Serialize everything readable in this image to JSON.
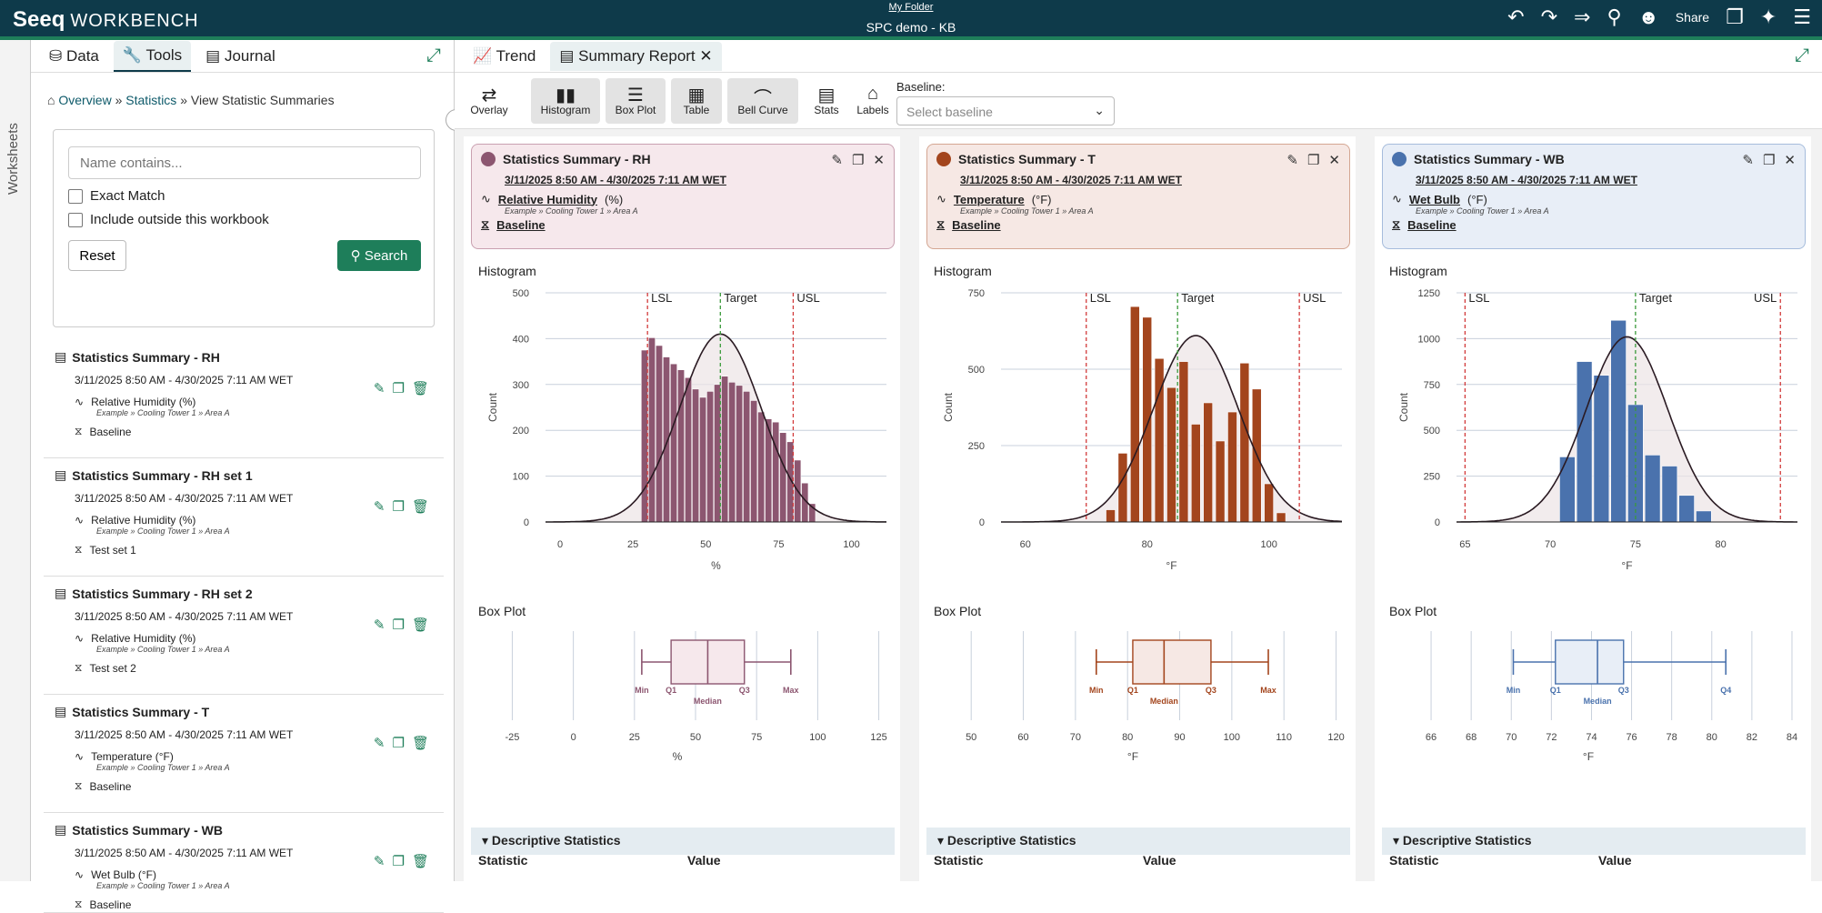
{
  "app": {
    "logo": "Seeq",
    "product": "WORKBENCH",
    "folder": "My Folder",
    "workbook": "SPC demo - KB",
    "share": "Share"
  },
  "sidebar": {
    "worksheets": "Worksheets"
  },
  "left": {
    "tabs": [
      {
        "label": "Data"
      },
      {
        "label": "Tools"
      },
      {
        "label": "Journal"
      }
    ],
    "breadcrumb": {
      "overview": "Overview",
      "statistics": "Statistics",
      "current": "View Statistic Summaries"
    },
    "search": {
      "placeholder": "Name contains...",
      "exact": "Exact Match",
      "outside": "Include outside this workbook",
      "reset": "Reset",
      "search": "Search"
    },
    "items": [
      {
        "title": "Statistics Summary - RH",
        "date": "3/11/2025 8:50 AM - 4/30/2025 7:11 AM WET",
        "signal": "Relative Humidity (%)",
        "path": "Example » Cooling Tower 1 » Area A",
        "baseline": "Baseline"
      },
      {
        "title": "Statistics Summary - RH set 1",
        "date": "3/11/2025 8:50 AM - 4/30/2025 7:11 AM WET",
        "signal": "Relative Humidity (%)",
        "path": "Example » Cooling Tower 1 » Area A",
        "baseline": "Test set 1"
      },
      {
        "title": "Statistics Summary - RH set 2",
        "date": "3/11/2025 8:50 AM - 4/30/2025 7:11 AM WET",
        "signal": "Relative Humidity (%)",
        "path": "Example » Cooling Tower 1 » Area A",
        "baseline": "Test set 2"
      },
      {
        "title": "Statistics Summary - T",
        "date": "3/11/2025 8:50 AM - 4/30/2025 7:11 AM WET",
        "signal": "Temperature (°F)",
        "path": "Example » Cooling Tower 1 » Area A",
        "baseline": "Baseline"
      },
      {
        "title": "Statistics Summary - WB",
        "date": "3/11/2025 8:50 AM - 4/30/2025 7:11 AM WET",
        "signal": "Wet Bulb (°F)",
        "path": "Example » Cooling Tower 1 » Area A",
        "baseline": "Baseline"
      }
    ]
  },
  "main": {
    "tabs": [
      {
        "label": "Trend"
      },
      {
        "label": "Summary Report"
      }
    ],
    "toolbar": {
      "overlay": "Overlay",
      "histogram": "Histogram",
      "boxplot": "Box Plot",
      "table": "Table",
      "bellcurve": "Bell Curve",
      "stats": "Stats",
      "labels": "Labels",
      "baseline_label": "Baseline:",
      "baseline_placeholder": "Select baseline"
    },
    "histogram_label": "Histogram",
    "boxplot_label": "Box Plot",
    "stat_header": "Statistic",
    "value_header": "Value",
    "desc_stats": "Descriptive Statistics",
    "columns": [
      {
        "title": "Statistics Summary - RH",
        "date": "3/11/2025 8:50 AM - 4/30/2025 7:11 AM WET",
        "signal": "Relative Humidity",
        "unit": "(%)",
        "path": "Example » Cooling Tower 1 » Area A",
        "baseline": "Baseline",
        "color": "#8c5670",
        "light": "#f6e8ec",
        "border": "#c9a0b0"
      },
      {
        "title": "Statistics Summary - T",
        "date": "3/11/2025 8:50 AM - 4/30/2025 7:11 AM WET",
        "signal": "Temperature",
        "unit": "(°F)",
        "path": "Example » Cooling Tower 1 » Area A",
        "baseline": "Baseline",
        "color": "#a3451d",
        "light": "#f6e8e4",
        "border": "#d4a692"
      },
      {
        "title": "Statistics Summary - WB",
        "date": "3/11/2025 8:50 AM - 4/30/2025 7:11 AM WET",
        "signal": "Wet Bulb",
        "unit": "(°F)",
        "path": "Example » Cooling Tower 1 » Area A",
        "baseline": "Baseline",
        "color": "#4a72ad",
        "light": "#e8eef7",
        "border": "#a6bcdc"
      }
    ]
  },
  "chart_data": [
    {
      "type": "bar",
      "title": "Histogram",
      "series_of": "Relative Humidity",
      "xlabel": "%",
      "ylabel": "Count",
      "xlim": [
        -5,
        112
      ],
      "ylim": [
        0,
        500
      ],
      "xticks": [
        0,
        25,
        50,
        75,
        100
      ],
      "yticks": [
        0,
        100,
        200,
        300,
        400,
        500
      ],
      "bins": [
        {
          "x": 29,
          "y": 375
        },
        {
          "x": 31.5,
          "y": 402
        },
        {
          "x": 34,
          "y": 385
        },
        {
          "x": 36.5,
          "y": 360
        },
        {
          "x": 39,
          "y": 345
        },
        {
          "x": 41.5,
          "y": 332
        },
        {
          "x": 44,
          "y": 315
        },
        {
          "x": 46.5,
          "y": 290
        },
        {
          "x": 49,
          "y": 272
        },
        {
          "x": 51.5,
          "y": 285
        },
        {
          "x": 54,
          "y": 300
        },
        {
          "x": 56.5,
          "y": 318
        },
        {
          "x": 59,
          "y": 305
        },
        {
          "x": 61.5,
          "y": 298
        },
        {
          "x": 64,
          "y": 285
        },
        {
          "x": 66.5,
          "y": 265
        },
        {
          "x": 69,
          "y": 240
        },
        {
          "x": 71.5,
          "y": 225
        },
        {
          "x": 74,
          "y": 218
        },
        {
          "x": 76.5,
          "y": 195
        },
        {
          "x": 79,
          "y": 175
        },
        {
          "x": 81.5,
          "y": 135
        },
        {
          "x": 84,
          "y": 85
        },
        {
          "x": 86.5,
          "y": 40
        }
      ],
      "bin_width": 2.3,
      "limits": {
        "LSL": 30,
        "Target": 55,
        "USL": 80
      },
      "curve": {
        "mean": 55,
        "sd": 14,
        "peak": 410
      }
    },
    {
      "type": "bar",
      "title": "Histogram",
      "series_of": "Temperature",
      "xlabel": "°F",
      "ylabel": "Count",
      "xlim": [
        56,
        112
      ],
      "ylim": [
        0,
        750
      ],
      "xticks": [
        60,
        80,
        100
      ],
      "yticks": [
        0,
        250,
        500,
        750
      ],
      "bins": [
        {
          "x": 74,
          "y": 40
        },
        {
          "x": 76,
          "y": 225
        },
        {
          "x": 78,
          "y": 705
        },
        {
          "x": 80,
          "y": 670
        },
        {
          "x": 82,
          "y": 535
        },
        {
          "x": 84,
          "y": 440
        },
        {
          "x": 86,
          "y": 525
        },
        {
          "x": 88,
          "y": 320
        },
        {
          "x": 90,
          "y": 390
        },
        {
          "x": 92,
          "y": 265
        },
        {
          "x": 94,
          "y": 360
        },
        {
          "x": 96,
          "y": 520
        },
        {
          "x": 98,
          "y": 435
        },
        {
          "x": 100,
          "y": 125
        },
        {
          "x": 102,
          "y": 30
        }
      ],
      "bin_width": 1.5,
      "limits": {
        "LSL": 70,
        "Target": 85,
        "USL": 105
      },
      "curve": {
        "mean": 88,
        "sd": 7,
        "peak": 610
      }
    },
    {
      "type": "bar",
      "title": "Histogram",
      "series_of": "Wet Bulb",
      "xlabel": "°F",
      "ylabel": "Count",
      "xlim": [
        64.5,
        84.5
      ],
      "ylim": [
        0,
        1250
      ],
      "xticks": [
        65,
        70,
        75,
        80
      ],
      "yticks": [
        0,
        250,
        500,
        750,
        1000,
        1250
      ],
      "bins": [
        {
          "x": 71,
          "y": 355
        },
        {
          "x": 72,
          "y": 875
        },
        {
          "x": 73,
          "y": 800
        },
        {
          "x": 74,
          "y": 1100
        },
        {
          "x": 75,
          "y": 640
        },
        {
          "x": 76,
          "y": 365
        },
        {
          "x": 77,
          "y": 305
        },
        {
          "x": 78,
          "y": 145
        },
        {
          "x": 79,
          "y": 60
        }
      ],
      "bin_width": 0.9,
      "limits": {
        "LSL": 65,
        "Target": 75,
        "USL": 83.5
      },
      "curve": {
        "mean": 74.5,
        "sd": 2.4,
        "peak": 1010
      }
    }
  ],
  "boxplots": [
    {
      "xlim": [
        -30,
        130
      ],
      "ticks": [
        -25,
        0,
        25,
        50,
        75,
        100,
        125
      ],
      "unit": "%",
      "min": 28,
      "q1": 40,
      "median": 55,
      "q3": 70,
      "max": 89
    },
    {
      "xlim": [
        47,
        122
      ],
      "ticks": [
        50,
        60,
        70,
        80,
        90,
        100,
        110,
        120
      ],
      "unit": "°F",
      "min": 74,
      "q1": 81,
      "median": 87,
      "q3": 96,
      "max": 107
    },
    {
      "xlim": [
        65,
        84.5
      ],
      "ticks": [
        66,
        68,
        70,
        72,
        74,
        76,
        78,
        80,
        82,
        84
      ],
      "unit": "°F",
      "min": 70.1,
      "q1": 72.2,
      "median": 74.3,
      "q3": 75.6,
      "max": 80.7
    }
  ]
}
